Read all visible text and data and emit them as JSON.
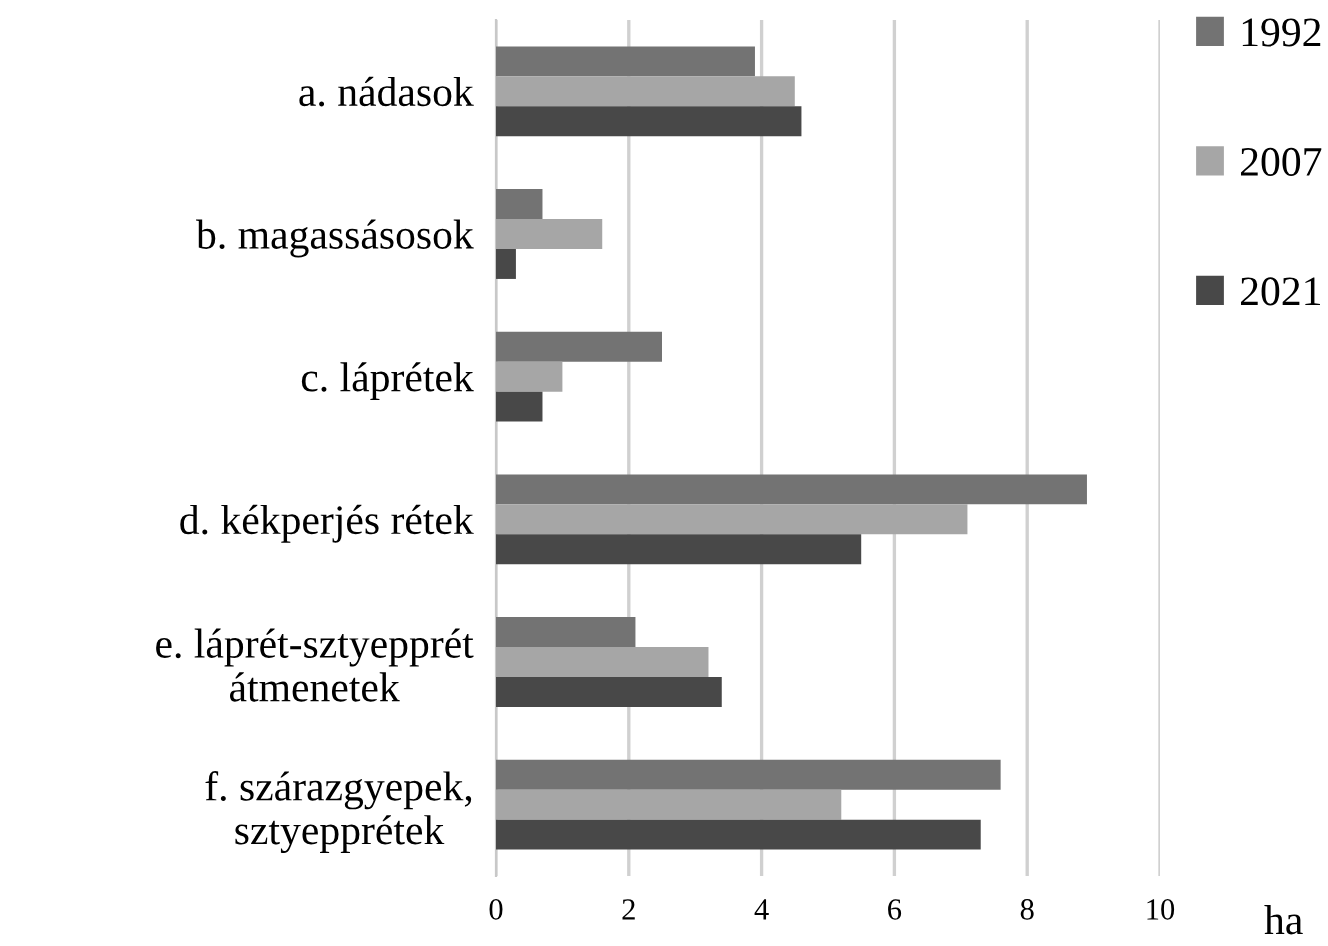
{
  "chart_data": {
    "type": "bar",
    "orientation": "horizontal",
    "xlabel": "ha",
    "categories": [
      "a. nádasok",
      "b. magassásosok",
      "c. láprétek",
      "d. kékperjés rétek",
      "e. láprét-sztyepprét\nátmenetek",
      "f. szárazgyepek,\nsztyepprétek"
    ],
    "series": [
      {
        "name": "1992",
        "color": "#737373",
        "values": [
          3.9,
          0.7,
          2.5,
          8.9,
          2.1,
          7.6
        ]
      },
      {
        "name": "2007",
        "color": "#a6a6a6",
        "values": [
          4.5,
          1.6,
          1.0,
          7.1,
          3.2,
          5.2
        ]
      },
      {
        "name": "2021",
        "color": "#484848",
        "values": [
          4.6,
          0.3,
          0.7,
          5.5,
          3.4,
          7.3
        ]
      }
    ],
    "xlim": [
      0,
      10
    ],
    "xticks": [
      0,
      2,
      4,
      6,
      8,
      10
    ],
    "grid": "x",
    "legend": "right"
  }
}
